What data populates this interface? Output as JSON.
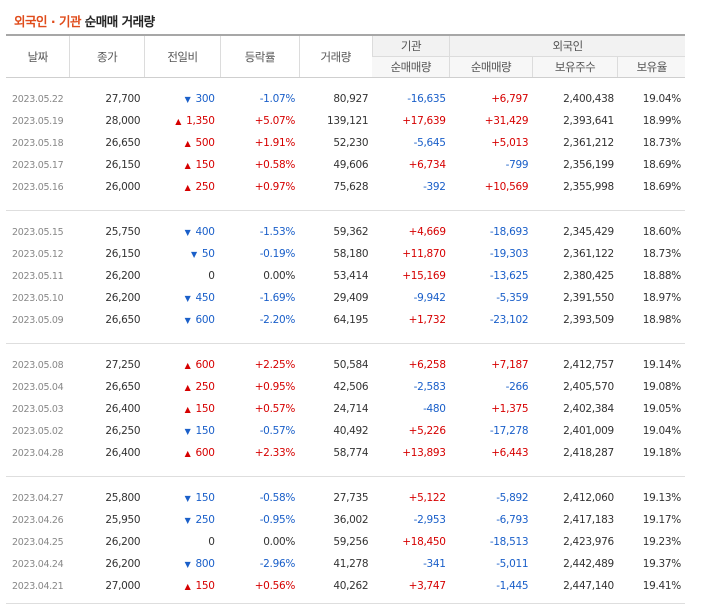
{
  "title": {
    "accent": "외국인 · 기관",
    "rest": " 순매매 거래량"
  },
  "headers": {
    "date": "날짜",
    "close": "종가",
    "change": "전일비",
    "rate": "등락률",
    "volume": "거래량",
    "inst_group": "기관",
    "inst_net": "순매매량",
    "foreign_group": "외국인",
    "foreign_net": "순매매량",
    "foreign_hold": "보유주수",
    "foreign_ratio": "보유율"
  },
  "colors": {
    "up": "#d60000",
    "down": "#1a5fc9",
    "accent": "#e04c1b"
  },
  "icons": {
    "up": "up-triangle-icon",
    "down": "down-triangle-icon"
  },
  "rows": [
    {
      "date": "2023.05.22",
      "close": "27,700",
      "dir": "down",
      "change": "300",
      "rate": "-1.07%",
      "volume": "80,927",
      "inst": "-16,635",
      "foreign": "+6,797",
      "hold": "2,400,438",
      "ratio": "19.04%"
    },
    {
      "date": "2023.05.19",
      "close": "28,000",
      "dir": "up",
      "change": "1,350",
      "rate": "+5.07%",
      "volume": "139,121",
      "inst": "+17,639",
      "foreign": "+31,429",
      "hold": "2,393,641",
      "ratio": "18.99%"
    },
    {
      "date": "2023.05.18",
      "close": "26,650",
      "dir": "up",
      "change": "500",
      "rate": "+1.91%",
      "volume": "52,230",
      "inst": "-5,645",
      "foreign": "+5,013",
      "hold": "2,361,212",
      "ratio": "18.73%"
    },
    {
      "date": "2023.05.17",
      "close": "26,150",
      "dir": "up",
      "change": "150",
      "rate": "+0.58%",
      "volume": "49,606",
      "inst": "+6,734",
      "foreign": "-799",
      "hold": "2,356,199",
      "ratio": "18.69%"
    },
    {
      "date": "2023.05.16",
      "close": "26,000",
      "dir": "up",
      "change": "250",
      "rate": "+0.97%",
      "volume": "75,628",
      "inst": "-392",
      "foreign": "+10,569",
      "hold": "2,355,998",
      "ratio": "18.69%"
    },
    {
      "date": "2023.05.15",
      "close": "25,750",
      "dir": "down",
      "change": "400",
      "rate": "-1.53%",
      "volume": "59,362",
      "inst": "+4,669",
      "foreign": "-18,693",
      "hold": "2,345,429",
      "ratio": "18.60%"
    },
    {
      "date": "2023.05.12",
      "close": "26,150",
      "dir": "down",
      "change": "50",
      "rate": "-0.19%",
      "volume": "58,180",
      "inst": "+11,870",
      "foreign": "-19,303",
      "hold": "2,361,122",
      "ratio": "18.73%"
    },
    {
      "date": "2023.05.11",
      "close": "26,200",
      "dir": "none",
      "change": "0",
      "rate": "0.00%",
      "volume": "53,414",
      "inst": "+15,169",
      "foreign": "-13,625",
      "hold": "2,380,425",
      "ratio": "18.88%"
    },
    {
      "date": "2023.05.10",
      "close": "26,200",
      "dir": "down",
      "change": "450",
      "rate": "-1.69%",
      "volume": "29,409",
      "inst": "-9,942",
      "foreign": "-5,359",
      "hold": "2,391,550",
      "ratio": "18.97%"
    },
    {
      "date": "2023.05.09",
      "close": "26,650",
      "dir": "down",
      "change": "600",
      "rate": "-2.20%",
      "volume": "64,195",
      "inst": "+1,732",
      "foreign": "-23,102",
      "hold": "2,393,509",
      "ratio": "18.98%"
    },
    {
      "date": "2023.05.08",
      "close": "27,250",
      "dir": "up",
      "change": "600",
      "rate": "+2.25%",
      "volume": "50,584",
      "inst": "+6,258",
      "foreign": "+7,187",
      "hold": "2,412,757",
      "ratio": "19.14%"
    },
    {
      "date": "2023.05.04",
      "close": "26,650",
      "dir": "up",
      "change": "250",
      "rate": "+0.95%",
      "volume": "42,506",
      "inst": "-2,583",
      "foreign": "-266",
      "hold": "2,405,570",
      "ratio": "19.08%"
    },
    {
      "date": "2023.05.03",
      "close": "26,400",
      "dir": "up",
      "change": "150",
      "rate": "+0.57%",
      "volume": "24,714",
      "inst": "-480",
      "foreign": "+1,375",
      "hold": "2,402,384",
      "ratio": "19.05%"
    },
    {
      "date": "2023.05.02",
      "close": "26,250",
      "dir": "down",
      "change": "150",
      "rate": "-0.57%",
      "volume": "40,492",
      "inst": "+5,226",
      "foreign": "-17,278",
      "hold": "2,401,009",
      "ratio": "19.04%"
    },
    {
      "date": "2023.04.28",
      "close": "26,400",
      "dir": "up",
      "change": "600",
      "rate": "+2.33%",
      "volume": "58,774",
      "inst": "+13,893",
      "foreign": "+6,443",
      "hold": "2,418,287",
      "ratio": "19.18%"
    },
    {
      "date": "2023.04.27",
      "close": "25,800",
      "dir": "down",
      "change": "150",
      "rate": "-0.58%",
      "volume": "27,735",
      "inst": "+5,122",
      "foreign": "-5,892",
      "hold": "2,412,060",
      "ratio": "19.13%"
    },
    {
      "date": "2023.04.26",
      "close": "25,950",
      "dir": "down",
      "change": "250",
      "rate": "-0.95%",
      "volume": "36,002",
      "inst": "-2,953",
      "foreign": "-6,793",
      "hold": "2,417,183",
      "ratio": "19.17%"
    },
    {
      "date": "2023.04.25",
      "close": "26,200",
      "dir": "none",
      "change": "0",
      "rate": "0.00%",
      "volume": "59,256",
      "inst": "+18,450",
      "foreign": "-18,513",
      "hold": "2,423,976",
      "ratio": "19.23%"
    },
    {
      "date": "2023.04.24",
      "close": "26,200",
      "dir": "down",
      "change": "800",
      "rate": "-2.96%",
      "volume": "41,278",
      "inst": "-341",
      "foreign": "-5,011",
      "hold": "2,442,489",
      "ratio": "19.37%"
    },
    {
      "date": "2023.04.21",
      "close": "27,000",
      "dir": "up",
      "change": "150",
      "rate": "+0.56%",
      "volume": "40,262",
      "inst": "+3,747",
      "foreign": "-1,445",
      "hold": "2,447,140",
      "ratio": "19.41%"
    }
  ]
}
